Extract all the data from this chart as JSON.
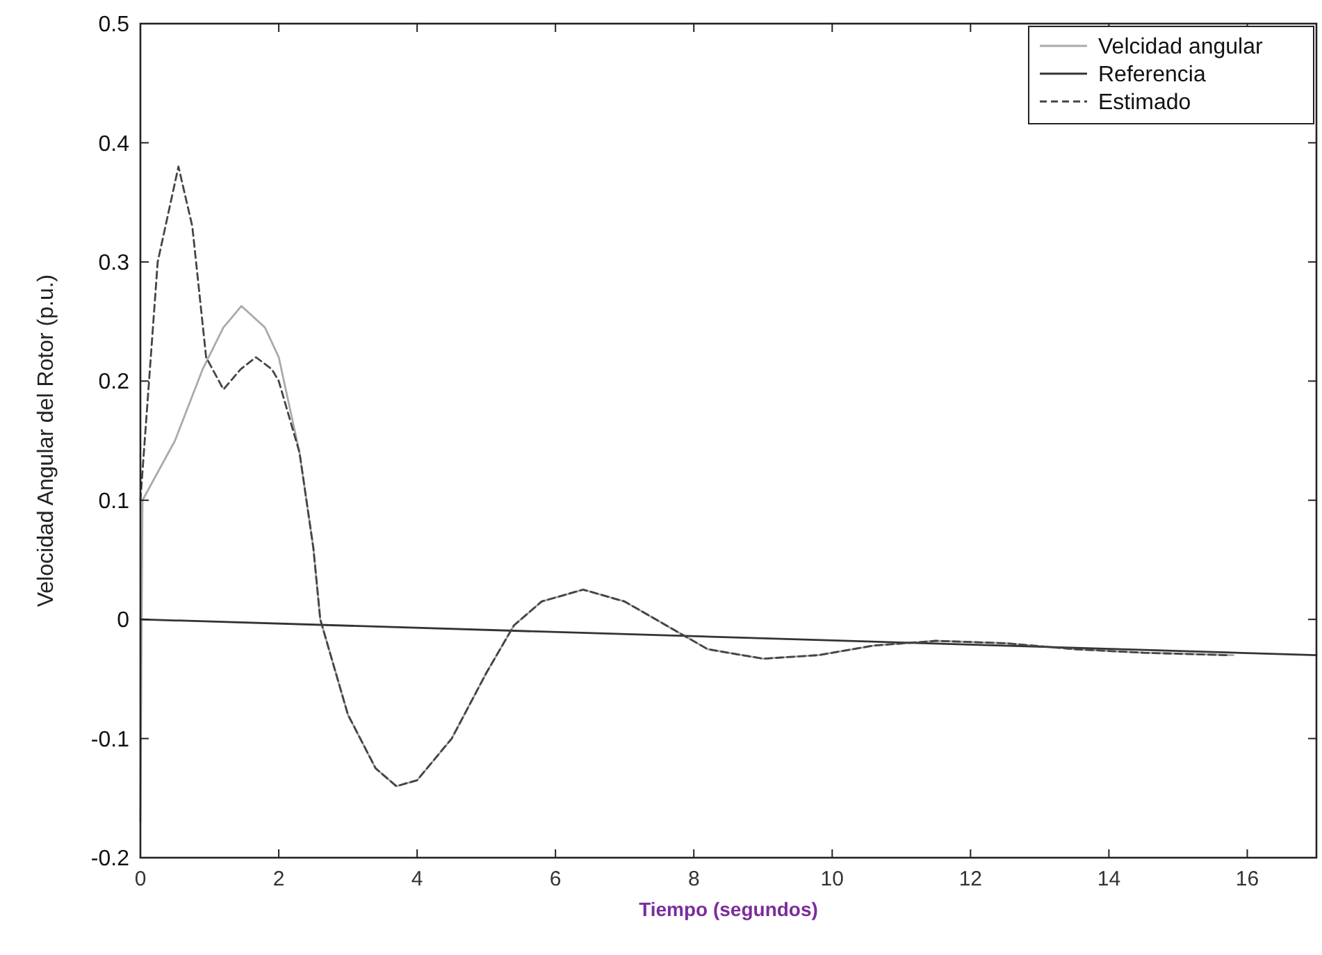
{
  "chart_data": {
    "type": "line",
    "xlabel": "Tiempo (segundos)",
    "ylabel": "Velocidad Angular del Rotor (p.u.)",
    "xlim": [
      0,
      17
    ],
    "xticks": [
      0,
      2,
      4,
      6,
      8,
      10,
      12,
      14,
      16
    ],
    "ylim": [
      -0.2,
      0.5
    ],
    "yticks": [
      -0.2,
      -0.1,
      0,
      0.1,
      0.2,
      0.3,
      0.4,
      0.5
    ],
    "grid": false,
    "legend": "top right",
    "marker": "none",
    "series": [
      {
        "name": "Velcidad angular",
        "color": "#aaaaaa",
        "line_style": "solid",
        "x": [
          0,
          0.03,
          0.5,
          0.9,
          1.2,
          1.46,
          1.8,
          2.0,
          2.3,
          2.5,
          2.6,
          3.0,
          3.4,
          3.7,
          4.0,
          4.5,
          5.0,
          5.4,
          5.8,
          6.4,
          7.0,
          7.6,
          8.2,
          9.0,
          9.8,
          10.6,
          11.5,
          12.5,
          13.5,
          14.5,
          15.8
        ],
        "values": [
          -0.17,
          0.1,
          0.15,
          0.21,
          0.245,
          0.263,
          0.245,
          0.22,
          0.14,
          0.06,
          0,
          -0.08,
          -0.125,
          -0.14,
          -0.135,
          -0.1,
          -0.045,
          -0.005,
          0.015,
          0.025,
          0.015,
          -0.005,
          -0.025,
          -0.033,
          -0.03,
          -0.022,
          -0.018,
          -0.02,
          -0.025,
          -0.028,
          -0.03
        ]
      },
      {
        "name": "Referencia",
        "color": "#333333",
        "line_style": "solid",
        "x": [
          0,
          17
        ],
        "values": [
          0,
          -0.03
        ]
      },
      {
        "name": "Estimado",
        "color": "#444444",
        "line_style": "dashed",
        "x": [
          0,
          0.25,
          0.55,
          0.75,
          0.95,
          1.2,
          1.45,
          1.67,
          1.9,
          2.0,
          2.3,
          2.5,
          2.6,
          3.0,
          3.4,
          3.7,
          4.0,
          4.5,
          5.0,
          5.4,
          5.8,
          6.4,
          7.0,
          7.6,
          8.2,
          9.0,
          9.8,
          10.6,
          11.5,
          12.5,
          13.5,
          14.5,
          15.7
        ],
        "values": [
          0.1,
          0.3,
          0.38,
          0.33,
          0.22,
          0.193,
          0.21,
          0.22,
          0.21,
          0.2,
          0.14,
          0.06,
          0,
          -0.08,
          -0.125,
          -0.14,
          -0.135,
          -0.1,
          -0.045,
          -0.005,
          0.015,
          0.025,
          0.015,
          -0.005,
          -0.025,
          -0.033,
          -0.03,
          -0.022,
          -0.018,
          -0.02,
          -0.025,
          -0.028,
          -0.03
        ]
      }
    ]
  }
}
